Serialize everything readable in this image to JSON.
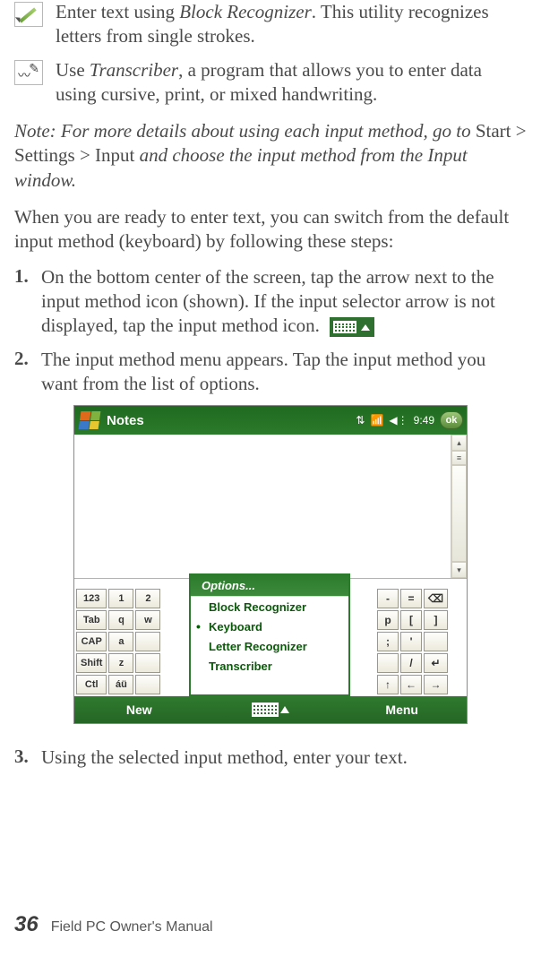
{
  "items": [
    {
      "text_pre": "Enter text using ",
      "text_em": "Block Recognizer",
      "text_post": ". This utility recognizes letters from single strokes."
    },
    {
      "text_pre": "Use ",
      "text_em": "Transcriber",
      "text_post": ", a program that allows you to enter data using cursive, print, or mixed handwriting."
    }
  ],
  "note": {
    "pre_em": "Note: For more details about using each input method, go to ",
    "path1": "Start",
    "sep1": " > ",
    "path2": "Settings",
    "sep2": " > ",
    "path3": "Input",
    "post_em": " and choose the input method from the Input window."
  },
  "para": "When you are ready to enter text, you can switch from the default input method (keyboard) by following these steps:",
  "steps": [
    "On the bottom center of the screen, tap the arrow next to the input method icon (shown). If the input selector arrow is not displayed, tap the input method icon.",
    "The input method menu appears. Tap the input method you want from the list of options.",
    "Using the selected input method, enter your text."
  ],
  "screenshot": {
    "title": "Notes",
    "time": "9:49",
    "ok": "ok",
    "popup_header": "Options...",
    "popup_items": [
      "Block Recognizer",
      "Keyboard",
      "Letter Recognizer",
      "Transcriber"
    ],
    "popup_selected_index": 1,
    "soft_left": "New",
    "soft_right": "Menu",
    "kb_left_rows": [
      [
        "123",
        "1",
        "2"
      ],
      [
        "Tab",
        "q",
        "w"
      ],
      [
        "CAP",
        "a",
        ""
      ],
      [
        "Shift",
        "z",
        ""
      ],
      [
        "Ctl",
        "áü",
        ""
      ]
    ],
    "kb_right_rows": [
      [
        "-",
        "=",
        "⌫"
      ],
      [
        "p",
        "[",
        "]"
      ],
      [
        ";",
        "'",
        ""
      ],
      [
        "",
        "/",
        "↵"
      ],
      [
        "↑",
        "←",
        "→"
      ]
    ]
  },
  "footer": {
    "page": "36",
    "title": "Field PC Owner's Manual"
  },
  "colors": {
    "text": "#4a4a4a",
    "green_dark": "#256525",
    "green": "#2f7a2f",
    "popup_text": "#0a5a0a",
    "key_border": "#9a988b"
  }
}
